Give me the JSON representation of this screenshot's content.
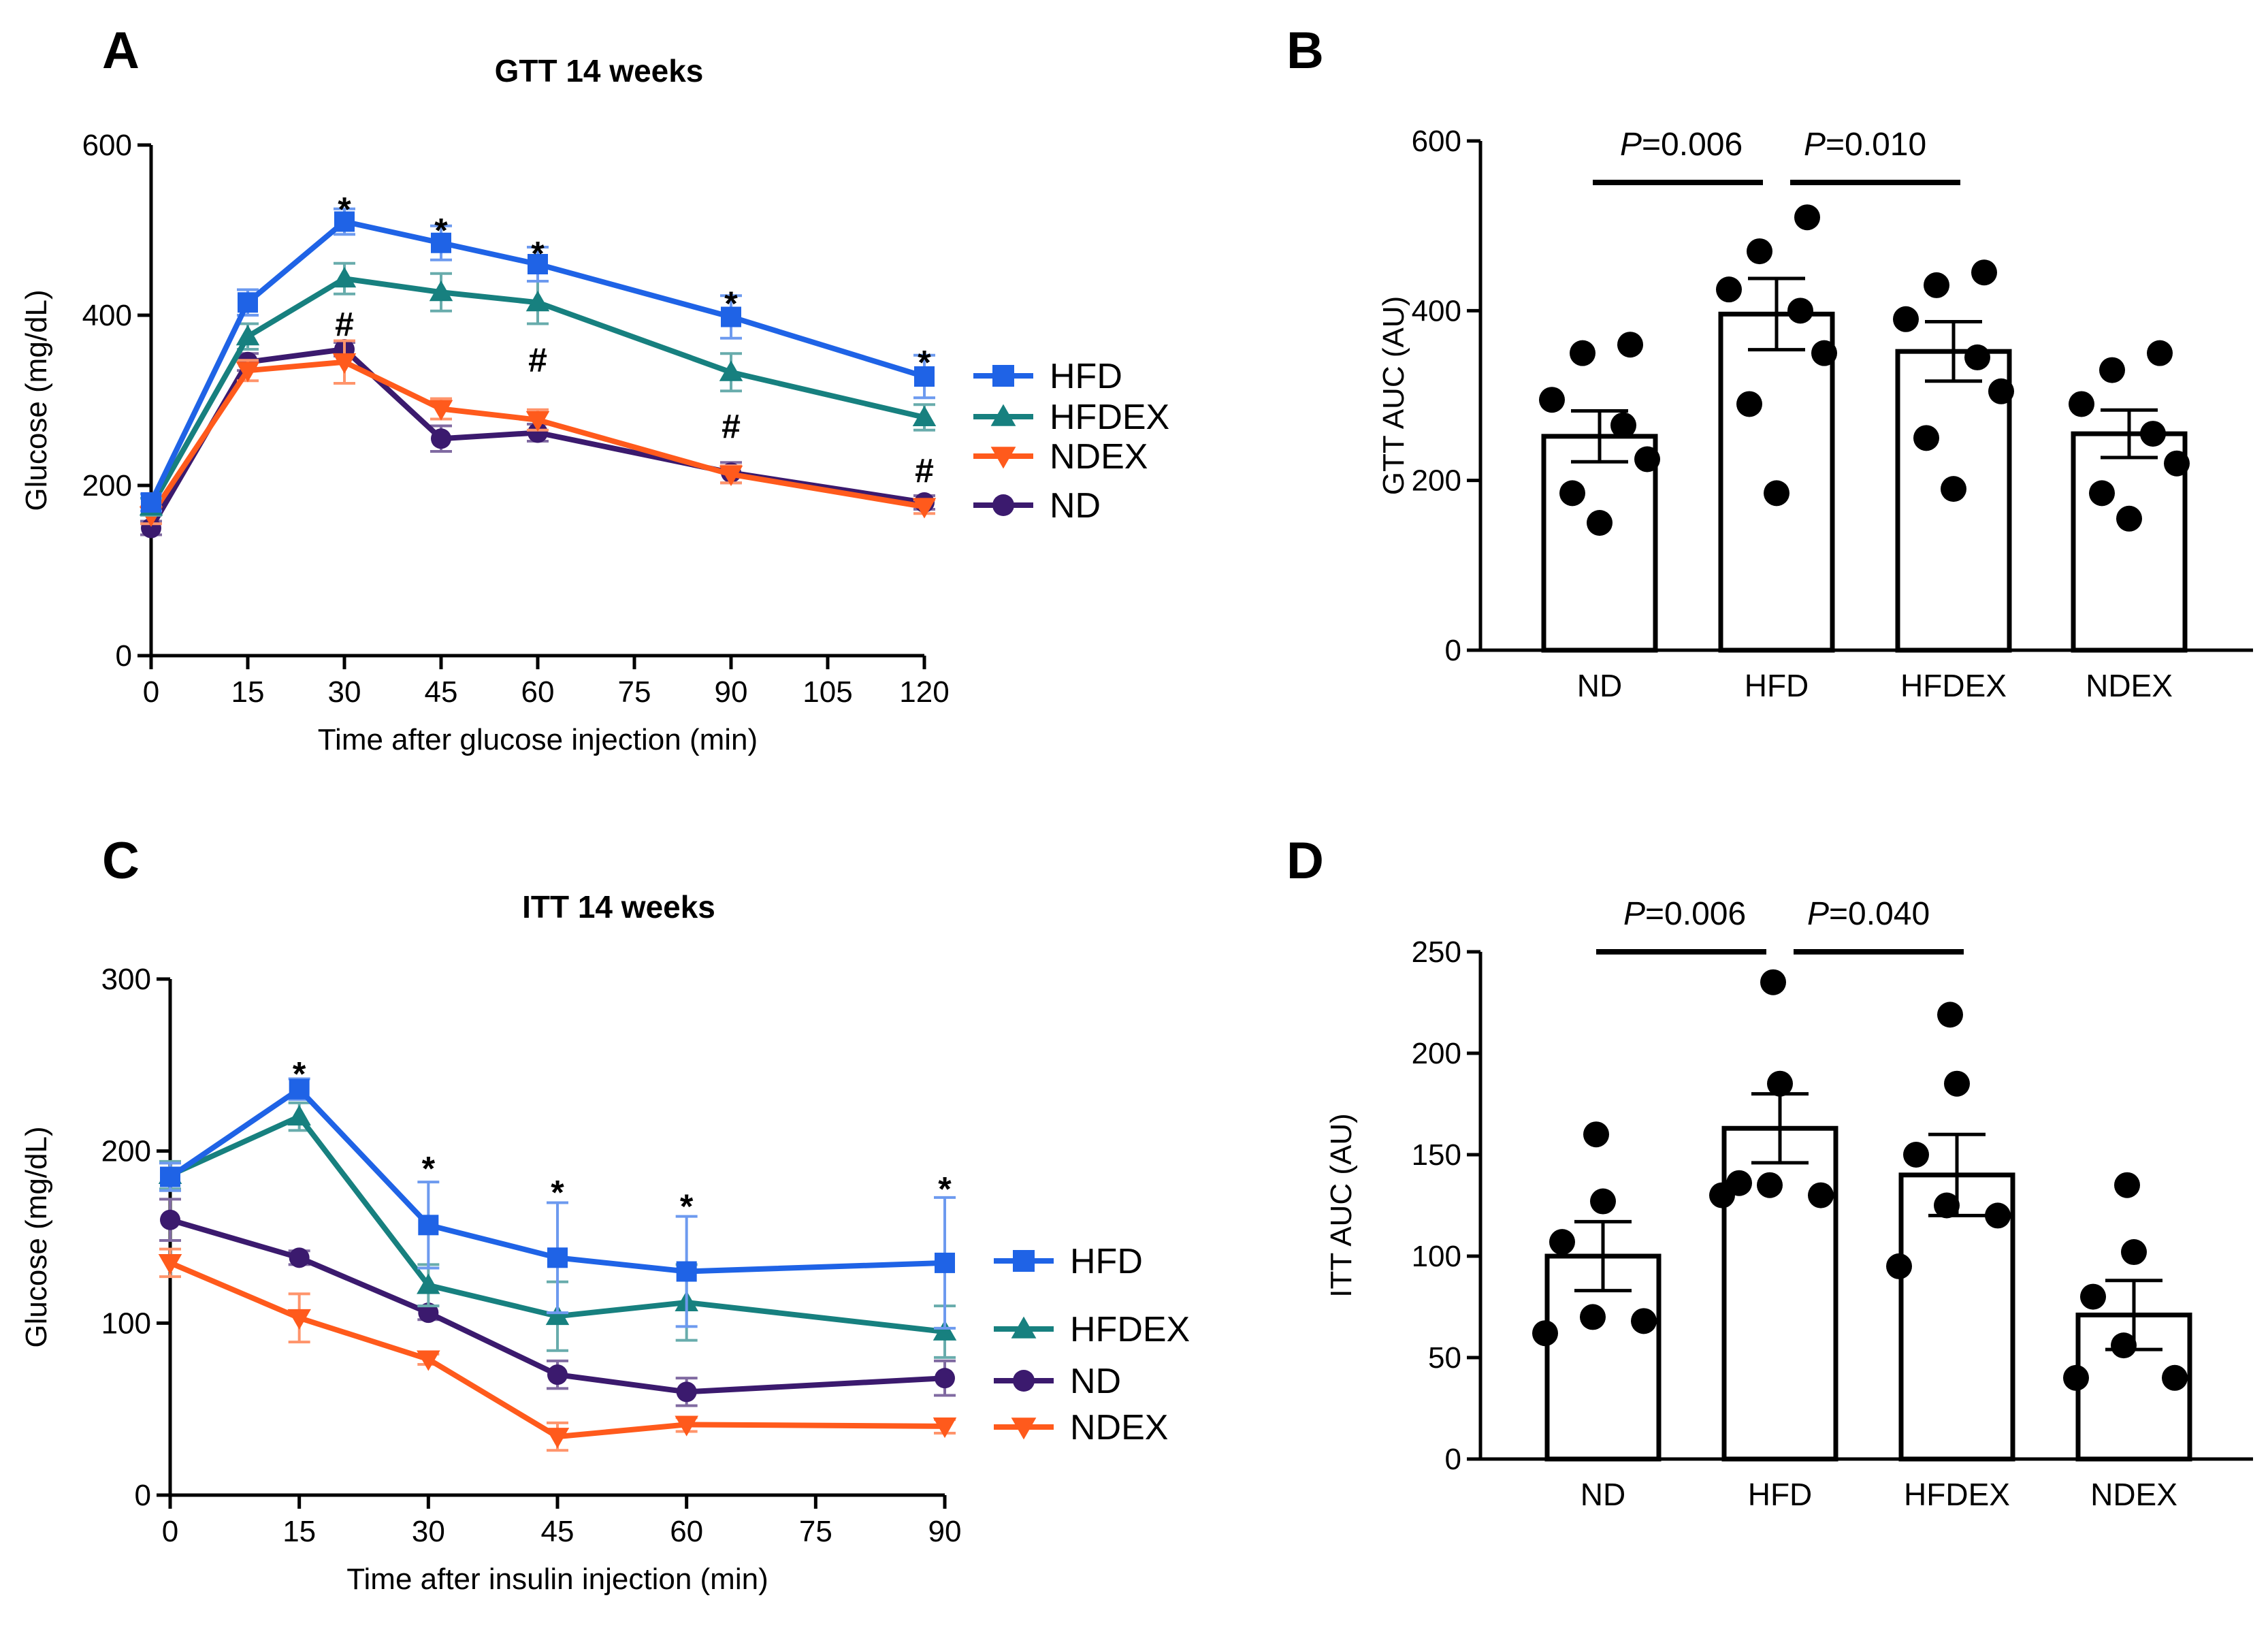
{
  "chart_data": [
    {
      "panel": "A",
      "type": "line",
      "title": "GTT 14 weeks",
      "xlabel": "Time after glucose injection (min)",
      "ylabel": "Glucose (mg/dL)",
      "xlim": [
        0,
        120
      ],
      "ylim": [
        0,
        600
      ],
      "xticks": [
        0,
        15,
        30,
        45,
        60,
        75,
        90,
        105,
        120
      ],
      "yticks": [
        0,
        200,
        400,
        600
      ],
      "x": [
        0,
        15,
        30,
        45,
        60,
        90,
        120
      ],
      "series": [
        {
          "name": "HFD",
          "color": "#1f63e6",
          "marker": "square",
          "values": [
            180,
            415,
            510,
            485,
            460,
            398,
            328
          ],
          "errors": [
            10,
            15,
            15,
            20,
            20,
            25,
            25
          ]
        },
        {
          "name": "HFDEX",
          "color": "#17807f",
          "marker": "triangle-up",
          "values": [
            175,
            375,
            443,
            427,
            415,
            333,
            280
          ],
          "errors": [
            10,
            15,
            18,
            22,
            25,
            22,
            15
          ]
        },
        {
          "name": "NDEX",
          "color": "#ff5a1c",
          "marker": "triangle-down",
          "values": [
            165,
            335,
            345,
            290,
            277,
            213,
            175
          ],
          "errors": [
            10,
            12,
            25,
            12,
            12,
            10,
            8
          ]
        },
        {
          "name": "ND",
          "color": "#3b1a6e",
          "marker": "circle",
          "values": [
            150,
            345,
            360,
            255,
            262,
            215,
            180
          ],
          "errors": [
            8,
            10,
            8,
            15,
            10,
            12,
            8
          ]
        }
      ],
      "legend_order": [
        "HFD",
        "HFDEX",
        "NDEX",
        "ND"
      ],
      "annotations": [
        {
          "x": 30,
          "y_value": 535,
          "text": "*"
        },
        {
          "x": 45,
          "y_value": 510,
          "text": "*"
        },
        {
          "x": 60,
          "y_value": 483,
          "text": "*"
        },
        {
          "x": 90,
          "y_value": 424,
          "text": "*"
        },
        {
          "x": 120,
          "y_value": 355,
          "text": "*"
        },
        {
          "x": 30,
          "y_value": 390,
          "text": "#"
        },
        {
          "x": 60,
          "y_value": 348,
          "text": "#"
        },
        {
          "x": 90,
          "y_value": 270,
          "text": "#"
        },
        {
          "x": 120,
          "y_value": 218,
          "text": "#"
        }
      ]
    },
    {
      "panel": "B",
      "type": "bar",
      "ylabel": "GTT AUC (AU)",
      "ylim": [
        0,
        600
      ],
      "yticks": [
        0,
        200,
        400,
        600
      ],
      "categories": [
        "ND",
        "HFD",
        "HFDEX",
        "NDEX"
      ],
      "values": [
        252,
        396,
        352,
        255
      ],
      "errors": [
        30,
        42,
        35,
        28
      ],
      "points": [
        [
          360,
          350,
          295,
          265,
          225,
          185,
          150
        ],
        [
          510,
          470,
          425,
          400,
          350,
          290,
          185
        ],
        [
          445,
          430,
          390,
          345,
          305,
          250,
          190
        ],
        [
          350,
          330,
          290,
          255,
          220,
          185,
          155
        ]
      ],
      "comparisons": [
        {
          "from": "ND",
          "to": "HFD",
          "p": "=0.006",
          "y_value": 545
        },
        {
          "from": "HFD",
          "to": "HFDEX",
          "p": "=0.010",
          "y_value": 545
        }
      ]
    },
    {
      "panel": "C",
      "type": "line",
      "title": "ITT 14 weeks",
      "xlabel": "Time after insulin injection (min)",
      "ylabel": "Glucose (mg/dL)",
      "xlim": [
        0,
        90
      ],
      "ylim": [
        0,
        300
      ],
      "xticks": [
        0,
        15,
        30,
        45,
        60,
        75,
        90
      ],
      "yticks": [
        0,
        100,
        200,
        300
      ],
      "x": [
        0,
        15,
        30,
        45,
        60,
        90
      ],
      "series": [
        {
          "name": "HFD",
          "color": "#1f63e6",
          "marker": "square",
          "values": [
            185,
            236,
            157,
            138,
            130,
            135
          ],
          "errors": [
            8,
            6,
            25,
            32,
            32,
            38
          ]
        },
        {
          "name": "HFDEX",
          "color": "#17807f",
          "marker": "triangle-up",
          "values": [
            186,
            220,
            122,
            104,
            112,
            95
          ],
          "errors": [
            8,
            8,
            12,
            20,
            22,
            15
          ]
        },
        {
          "name": "ND",
          "color": "#3b1a6e",
          "marker": "circle",
          "values": [
            160,
            138,
            106,
            70,
            60,
            68
          ],
          "errors": [
            12,
            4,
            4,
            8,
            8,
            10
          ]
        },
        {
          "name": "NDEX",
          "color": "#ff5a1c",
          "marker": "triangle-down",
          "values": [
            135,
            103,
            79,
            34,
            41,
            40
          ],
          "errors": [
            8,
            14,
            3,
            8,
            4,
            4
          ]
        }
      ],
      "legend_order": [
        "HFD",
        "HFDEX",
        "ND",
        "NDEX"
      ],
      "annotations": [
        {
          "x": 15,
          "y_value": 250,
          "text": "*"
        },
        {
          "x": 30,
          "y_value": 195,
          "text": "*"
        },
        {
          "x": 45,
          "y_value": 181,
          "text": "*"
        },
        {
          "x": 60,
          "y_value": 173,
          "text": "*"
        },
        {
          "x": 90,
          "y_value": 183,
          "text": "*"
        }
      ]
    },
    {
      "panel": "D",
      "type": "bar",
      "ylabel": "ITT AUC (AU)",
      "ylim": [
        0,
        250
      ],
      "yticks": [
        0,
        50,
        100,
        150,
        200,
        250
      ],
      "categories": [
        "ND",
        "HFD",
        "HFDEX",
        "NDEX"
      ],
      "values": [
        100,
        163,
        140,
        71
      ],
      "errors": [
        17,
        17,
        20,
        17
      ],
      "points": [
        [
          160,
          127,
          107,
          70,
          68,
          62
        ],
        [
          235,
          185,
          136,
          135,
          130,
          130
        ],
        [
          219,
          185,
          150,
          125,
          120,
          95
        ],
        [
          135,
          102,
          80,
          56,
          40,
          40
        ]
      ],
      "comparisons": [
        {
          "from": "ND",
          "to": "HFD",
          "p": "=0.006",
          "y_value": 250
        },
        {
          "from": "HFD",
          "to": "HFDEX",
          "p": "=0.040",
          "y_value": 250
        }
      ]
    }
  ]
}
